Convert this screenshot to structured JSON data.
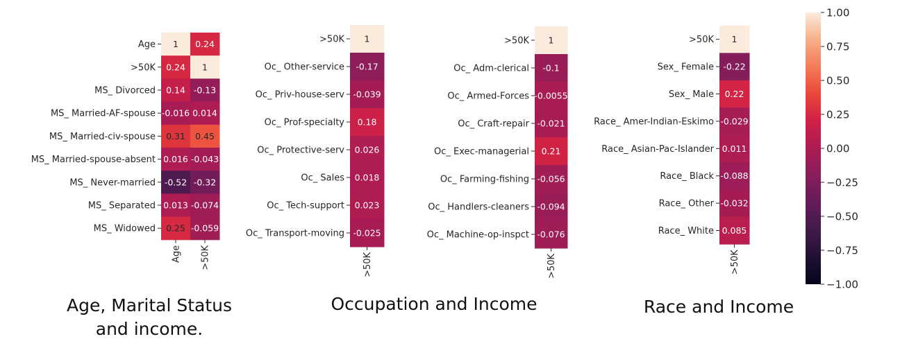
{
  "captions": {
    "age": "Age, Marital Status and income.",
    "occupation": "Occupation and Income",
    "race": "Race and Income"
  },
  "chart_data": [
    {
      "type": "heatmap",
      "title": "",
      "rows": [
        "Age",
        ">50K",
        "MS_ Divorced",
        "MS_ Married-AF-spouse",
        "MS_ Married-civ-spouse",
        "MS_ Married-spouse-absent",
        "MS_ Never-married",
        "MS_ Separated",
        "MS_ Widowed"
      ],
      "columns": [
        "Age",
        ">50K"
      ],
      "values": [
        [
          1,
          0.24
        ],
        [
          0.24,
          1
        ],
        [
          0.14,
          -0.13
        ],
        [
          -0.016,
          0.014
        ],
        [
          0.31,
          0.45
        ],
        [
          0.016,
          -0.043
        ],
        [
          -0.52,
          -0.32
        ],
        [
          0.013,
          -0.074
        ],
        [
          0.25,
          -0.059
        ]
      ],
      "labels": [
        [
          "1",
          "0.24"
        ],
        [
          "0.24",
          "1"
        ],
        [
          "0.14",
          "-0.13"
        ],
        [
          "-0.016",
          "0.014"
        ],
        [
          "0.31",
          "0.45"
        ],
        [
          "0.016",
          "-0.043"
        ],
        [
          "-0.52",
          "-0.32"
        ],
        [
          "0.013",
          "-0.074"
        ],
        [
          "0.25",
          "-0.059"
        ]
      ],
      "vmin": -1,
      "vmax": 1
    },
    {
      "type": "heatmap",
      "title": "",
      "rows": [
        ">50K",
        "Oc_ Other-service",
        "Oc_ Priv-house-serv",
        "Oc_ Prof-specialty",
        "Oc_ Protective-serv",
        "Oc_ Sales",
        "Oc_ Tech-support",
        "Oc_ Transport-moving"
      ],
      "columns": [
        ">50K"
      ],
      "values": [
        [
          1
        ],
        [
          -0.17
        ],
        [
          -0.039
        ],
        [
          0.18
        ],
        [
          0.026
        ],
        [
          0.018
        ],
        [
          0.023
        ],
        [
          -0.025
        ]
      ],
      "labels": [
        [
          "1"
        ],
        [
          "-0.17"
        ],
        [
          "-0.039"
        ],
        [
          "0.18"
        ],
        [
          "0.026"
        ],
        [
          "0.018"
        ],
        [
          "0.023"
        ],
        [
          "-0.025"
        ]
      ],
      "vmin": -1,
      "vmax": 1
    },
    {
      "type": "heatmap",
      "title": "",
      "rows": [
        ">50K",
        "Oc_ Adm-clerical",
        "Oc_ Armed-Forces",
        "Oc_ Craft-repair",
        "Oc_ Exec-managerial",
        "Oc_ Farming-fishing",
        "Oc_ Handlers-cleaners",
        "Oc_ Machine-op-inspct"
      ],
      "columns": [
        ">50K"
      ],
      "values": [
        [
          1
        ],
        [
          -0.1
        ],
        [
          -0.0055
        ],
        [
          -0.021
        ],
        [
          0.21
        ],
        [
          -0.056
        ],
        [
          -0.094
        ],
        [
          -0.076
        ]
      ],
      "labels": [
        [
          "1"
        ],
        [
          "-0.1"
        ],
        [
          "-0.0055"
        ],
        [
          "-0.021"
        ],
        [
          "0.21"
        ],
        [
          "-0.056"
        ],
        [
          "-0.094"
        ],
        [
          "-0.076"
        ]
      ],
      "vmin": -1,
      "vmax": 1
    },
    {
      "type": "heatmap",
      "title": "",
      "rows": [
        ">50K",
        "Sex_ Female",
        "Sex_ Male",
        "Race_ Amer-Indian-Eskimo",
        "Race_ Asian-Pac-Islander",
        "Race_ Black",
        "Race_ Other",
        "Race_ White"
      ],
      "columns": [
        ">50K"
      ],
      "values": [
        [
          1
        ],
        [
          -0.22
        ],
        [
          0.22
        ],
        [
          -0.029
        ],
        [
          0.011
        ],
        [
          -0.088
        ],
        [
          -0.032
        ],
        [
          0.085
        ]
      ],
      "labels": [
        [
          "1"
        ],
        [
          "-0.22"
        ],
        [
          "0.22"
        ],
        [
          "-0.029"
        ],
        [
          "0.011"
        ],
        [
          "-0.088"
        ],
        [
          "-0.032"
        ],
        [
          "0.085"
        ]
      ],
      "vmin": -1,
      "vmax": 1
    }
  ],
  "colorbar": {
    "colormap": "rocket",
    "ticks": [
      1.0,
      0.75,
      0.5,
      0.25,
      0.0,
      -0.25,
      -0.5,
      -0.75,
      -1.0
    ],
    "tick_labels": [
      "1.00",
      "0.75",
      "0.50",
      "0.25",
      "0.00",
      "−0.25",
      "−0.50",
      "−0.75",
      "−1.00"
    ],
    "vmin": -1,
    "vmax": 1
  }
}
